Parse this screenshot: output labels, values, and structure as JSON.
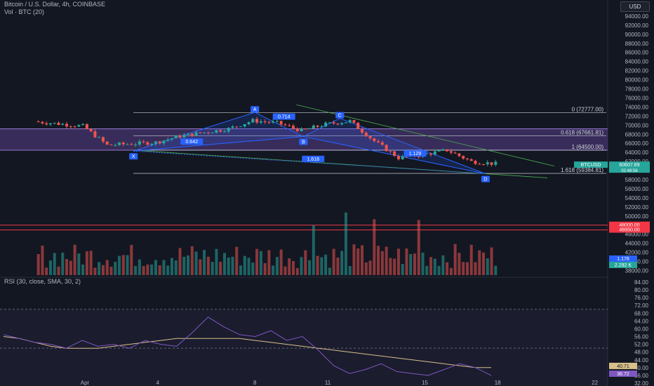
{
  "header": {
    "symbol_line": "Bitcoin / U.S. Dollar, 4h, COINBASE",
    "volume_line": "Vol · BTC (20)",
    "currency": "USD"
  },
  "colors": {
    "background": "#131722",
    "up": "#26a69a",
    "down": "#ef5350",
    "pattern": "#2962ff",
    "zone": "#7e57c2",
    "rsi": "#7e57c2",
    "rsi_ma": "#d8c08a"
  },
  "chart_data": [
    {
      "type": "candlestick",
      "title": "Bitcoin / U.S. Dollar, 4h, COINBASE",
      "y_axis_labels": [
        "94000.00",
        "92000.00",
        "90000.00",
        "88000.00",
        "86000.00",
        "84000.00",
        "82000.00",
        "80000.00",
        "78000.00",
        "76000.00",
        "74000.00",
        "72000.00",
        "70000.00",
        "68000.00",
        "66000.00",
        "64000.00",
        "62000.00",
        "60000.00",
        "58000.00",
        "56000.00",
        "54000.00",
        "52000.00",
        "50000.00",
        "48000.00",
        "46000.00",
        "44000.00",
        "42000.00",
        "40000.00",
        "38000.00"
      ],
      "x_axis_labels": [
        "Apr",
        "4",
        "8",
        "11",
        "15",
        "18",
        "22"
      ],
      "ylim": [
        37000,
        96000
      ],
      "close_path": [
        {
          "date": "Mar 30",
          "close": 70800
        },
        {
          "date": "Mar 31",
          "close": 70300
        },
        {
          "date": "Apr 1",
          "close": 69800
        },
        {
          "date": "Apr 2",
          "close": 65600
        },
        {
          "date": "Apr 3",
          "close": 65900
        },
        {
          "date": "Apr 4",
          "close": 66200
        },
        {
          "date": "Apr 5",
          "close": 67600
        },
        {
          "date": "Apr 6",
          "close": 68400
        },
        {
          "date": "Apr 7",
          "close": 69200
        },
        {
          "date": "Apr 8",
          "close": 71000
        },
        {
          "date": "Apr 9",
          "close": 70500
        },
        {
          "date": "Apr 10",
          "close": 68800
        },
        {
          "date": "Apr 11",
          "close": 70200
        },
        {
          "date": "Apr 12",
          "close": 70900
        },
        {
          "date": "Apr 13",
          "close": 66500
        },
        {
          "date": "Apr 14",
          "close": 62800
        },
        {
          "date": "Apr 15",
          "close": 63500
        },
        {
          "date": "Apr 16",
          "close": 64500
        },
        {
          "date": "Apr 17",
          "close": 62000
        },
        {
          "date": "Apr 18",
          "close": 61500
        }
      ],
      "fib_levels": [
        {
          "label": "0 (72777.00)",
          "value": 72777
        },
        {
          "label": "0.618 (67661.81)",
          "value": 67661.81
        },
        {
          "label": "1 (64500.00)",
          "value": 64500
        },
        {
          "label": "1.618 (59384.81)",
          "value": 59384.81
        }
      ],
      "harmonic_points": [
        {
          "label": "X",
          "date": "Apr 3",
          "value": 64300
        },
        {
          "label": "A",
          "date": "Apr 8",
          "value": 72800
        },
        {
          "label": "B",
          "date": "Apr 10",
          "value": 67500
        },
        {
          "label": "C",
          "date": "Apr 11.5",
          "value": 71500
        },
        {
          "label": "D",
          "date": "Apr 17.5",
          "value": 59300
        }
      ],
      "ratio_labels": [
        "0.714",
        "0.642",
        "1.618",
        "1.129"
      ],
      "price_tags": [
        {
          "label": "BTCUSD",
          "value": "60607.89",
          "sub": "02:48:56"
        },
        {
          "label": "",
          "value": "48000.00"
        },
        {
          "label": "",
          "value": "46950.00"
        }
      ],
      "horizontal_lines": [
        {
          "value": 48000,
          "color": "#f23645"
        },
        {
          "value": 46950,
          "color": "#f23645"
        }
      ]
    },
    {
      "type": "bar",
      "title": "Vol · BTC (20)",
      "tags": [
        "1.178",
        "2.292 K"
      ]
    },
    {
      "type": "line",
      "title": "RSI (30, close, SMA, 30, 2)",
      "y_axis_labels": [
        "84.00",
        "80.00",
        "76.00",
        "72.00",
        "68.00",
        "64.00",
        "60.00",
        "56.00",
        "52.00",
        "48.00",
        "44.00",
        "40.00",
        "36.00",
        "32.00"
      ],
      "ylim": [
        32,
        84
      ],
      "bands": [
        70,
        50,
        30
      ],
      "tags": [
        "40.71",
        "36.72"
      ],
      "series": [
        {
          "values": [
            57,
            55,
            53,
            52,
            50,
            54,
            51,
            52,
            50,
            54,
            52,
            51,
            58,
            66,
            61,
            57,
            56,
            59,
            54,
            56,
            49,
            41,
            37,
            39,
            42,
            38,
            37,
            36,
            39,
            42,
            40,
            36
          ]
        },
        {
          "values": [
            56,
            55,
            53,
            51,
            50,
            50,
            50,
            51,
            52,
            53,
            54,
            55,
            55,
            55,
            55,
            55,
            54,
            53,
            52,
            51,
            50,
            49,
            48,
            47,
            46,
            45,
            44,
            43,
            42,
            41,
            40,
            40
          ]
        }
      ]
    }
  ]
}
